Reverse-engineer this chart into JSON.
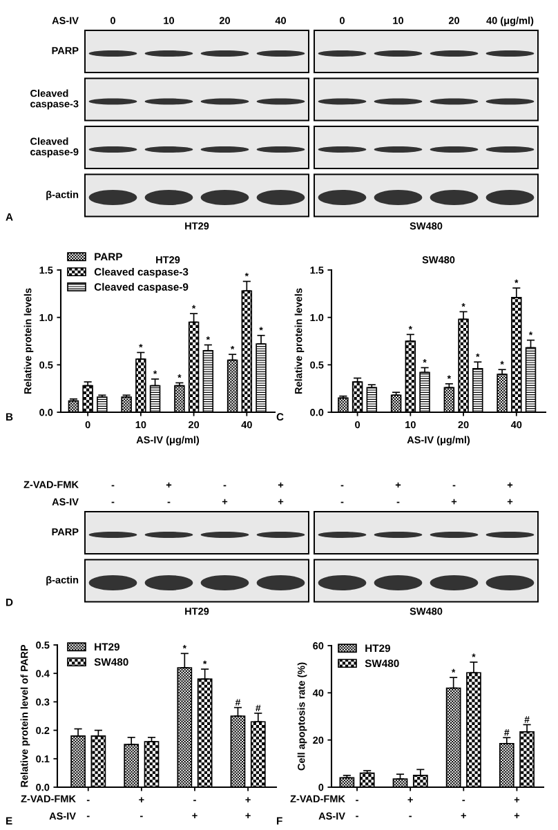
{
  "chart_data": [
    {
      "type": "other",
      "categories": [
        "0",
        "10",
        "20",
        "40",
        "0",
        "10",
        "20",
        "40 (μg/ml)"
      ],
      "y_categories": [
        "PARP",
        "Cleaved\ncaspase-3",
        "Cleaved\ncaspase-9",
        "β-actin"
      ],
      "annotations": [
        "AS-IV",
        "HT29",
        "SW480",
        "A"
      ]
    },
    {
      "type": "bar",
      "title": "HT29",
      "xlabel": "AS-IV (μg/ml)",
      "ylabel": "Relative protein levels",
      "categories": [
        "0",
        "10",
        "20",
        "40"
      ],
      "ylim": [
        0,
        1.5
      ],
      "yticks": [
        {
          "value": 0,
          "label": "0.0"
        },
        {
          "value": 0.5,
          "label": "0.5"
        },
        {
          "value": 1.0,
          "label": "1.0"
        },
        {
          "value": 1.5,
          "label": "1.5"
        }
      ],
      "legend": "top left",
      "annotations": [
        "B"
      ],
      "series": [
        {
          "name": "PARP",
          "color": "#000000",
          "values": [
            0.12,
            0.16,
            0.28,
            0.55
          ],
          "errors": [
            [
              0.12,
              0.14
            ],
            [
              0.16,
              0.18
            ],
            [
              0.28,
              0.31
            ],
            [
              0.55,
              0.61
            ]
          ],
          "value_labels": [
            null,
            null,
            "*",
            "*"
          ]
        },
        {
          "name": "Cleaved caspase-3",
          "color": "#000000",
          "values": [
            0.28,
            0.56,
            0.95,
            1.28
          ],
          "errors": [
            [
              0.28,
              0.32
            ],
            [
              0.56,
              0.63
            ],
            [
              0.95,
              1.04
            ],
            [
              1.28,
              1.38
            ]
          ],
          "value_labels": [
            null,
            "*",
            "*",
            "*"
          ]
        },
        {
          "name": "Cleaved caspase-9",
          "color": "#000000",
          "values": [
            0.16,
            0.28,
            0.65,
            0.72
          ],
          "errors": [
            [
              0.16,
              0.18
            ],
            [
              0.28,
              0.35
            ],
            [
              0.65,
              0.71
            ],
            [
              0.72,
              0.81
            ]
          ],
          "value_labels": [
            null,
            "*",
            "*",
            "*"
          ]
        }
      ]
    },
    {
      "type": "bar",
      "title": "SW480",
      "xlabel": "AS-IV (μg/ml)",
      "ylabel": "Relative protein levels",
      "categories": [
        "0",
        "10",
        "20",
        "40"
      ],
      "ylim": [
        0,
        1.5
      ],
      "yticks": [
        {
          "value": 0,
          "label": "0.0"
        },
        {
          "value": 0.5,
          "label": "0.5"
        },
        {
          "value": 1.0,
          "label": "1.0"
        },
        {
          "value": 1.5,
          "label": "1.5"
        }
      ],
      "annotations": [
        "C"
      ],
      "series": [
        {
          "color": "#000000",
          "values": [
            0.15,
            0.18,
            0.26,
            0.4
          ],
          "errors": [
            [
              0.15,
              0.17
            ],
            [
              0.18,
              0.21
            ],
            [
              0.26,
              0.3
            ],
            [
              0.4,
              0.45
            ]
          ],
          "value_labels": [
            null,
            null,
            "*",
            "*"
          ]
        },
        {
          "color": "#000000",
          "values": [
            0.32,
            0.75,
            0.98,
            1.21
          ],
          "errors": [
            [
              0.32,
              0.36
            ],
            [
              0.75,
              0.82
            ],
            [
              0.98,
              1.06
            ],
            [
              1.21,
              1.31
            ]
          ],
          "value_labels": [
            null,
            "*",
            "*",
            "*"
          ]
        },
        {
          "color": "#000000",
          "values": [
            0.26,
            0.42,
            0.46,
            0.68
          ],
          "errors": [
            [
              0.26,
              0.29
            ],
            [
              0.42,
              0.47
            ],
            [
              0.46,
              0.53
            ],
            [
              0.68,
              0.76
            ]
          ],
          "value_labels": [
            null,
            "*",
            "*",
            "*"
          ]
        }
      ]
    },
    {
      "type": "other",
      "categories": [
        "-\n-",
        "+\n-",
        "-\n+",
        "+\n+",
        "-\n-",
        "+\n-",
        "-\n+",
        "+\n+"
      ],
      "y_categories": [
        "PARP",
        "β-actin"
      ],
      "annotations": [
        "Z-VAD-FMK",
        "AS-IV",
        "HT29",
        "SW480",
        "D"
      ]
    },
    {
      "type": "bar",
      "ylabel": "Relative protein level of PARP",
      "categories": [
        "-\n-",
        "+\n-",
        "-\n+",
        "+\n+"
      ],
      "ylim": [
        0,
        0.5
      ],
      "yticks": [
        {
          "value": 0,
          "label": "0.0"
        },
        {
          "value": 0.1,
          "label": "0.1"
        },
        {
          "value": 0.2,
          "label": "0.2"
        },
        {
          "value": 0.3,
          "label": "0.3"
        },
        {
          "value": 0.4,
          "label": "0.4"
        },
        {
          "value": 0.5,
          "label": "0.5"
        }
      ],
      "legend": "top left",
      "annotations": [
        "Z-VAD-FMK",
        "AS-IV",
        "E"
      ],
      "series": [
        {
          "name": "HT29",
          "color": "#000000",
          "values": [
            0.18,
            0.15,
            0.42,
            0.25
          ],
          "errors": [
            [
              0.18,
              0.205
            ],
            [
              0.15,
              0.175
            ],
            [
              0.42,
              0.47
            ],
            [
              0.25,
              0.28
            ]
          ],
          "value_labels": [
            null,
            null,
            "*",
            "#"
          ]
        },
        {
          "name": "SW480",
          "color": "#000000",
          "values": [
            0.18,
            0.16,
            0.38,
            0.23
          ],
          "errors": [
            [
              0.18,
              0.2
            ],
            [
              0.16,
              0.175
            ],
            [
              0.38,
              0.415
            ],
            [
              0.23,
              0.26
            ]
          ],
          "value_labels": [
            null,
            null,
            "*",
            "#"
          ]
        }
      ]
    },
    {
      "type": "bar",
      "ylabel": "Cell apoptosis rate (%)",
      "categories": [
        "-\n-",
        "+\n-",
        "-\n+",
        "+\n+"
      ],
      "ylim": [
        0,
        60
      ],
      "yticks": [
        0,
        20,
        40,
        60
      ],
      "legend": "top left",
      "annotations": [
        "Z-VAD-FMK",
        "AS-IV",
        "F"
      ],
      "series": [
        {
          "name": "HT29",
          "color": "#000000",
          "values": [
            4,
            3.5,
            42,
            18.5
          ],
          "errors": [
            [
              4,
              5
            ],
            [
              3.5,
              5.5
            ],
            [
              42,
              46.5
            ],
            [
              18.5,
              21
            ]
          ],
          "value_labels": [
            null,
            null,
            "*",
            "#"
          ]
        },
        {
          "name": "SW480",
          "color": "#000000",
          "values": [
            6,
            5,
            48.5,
            23.5
          ],
          "errors": [
            [
              6,
              7
            ],
            [
              5,
              7.5
            ],
            [
              48.5,
              53
            ],
            [
              23.5,
              26.5
            ]
          ],
          "value_labels": [
            null,
            null,
            "*",
            "#"
          ]
        }
      ]
    }
  ]
}
